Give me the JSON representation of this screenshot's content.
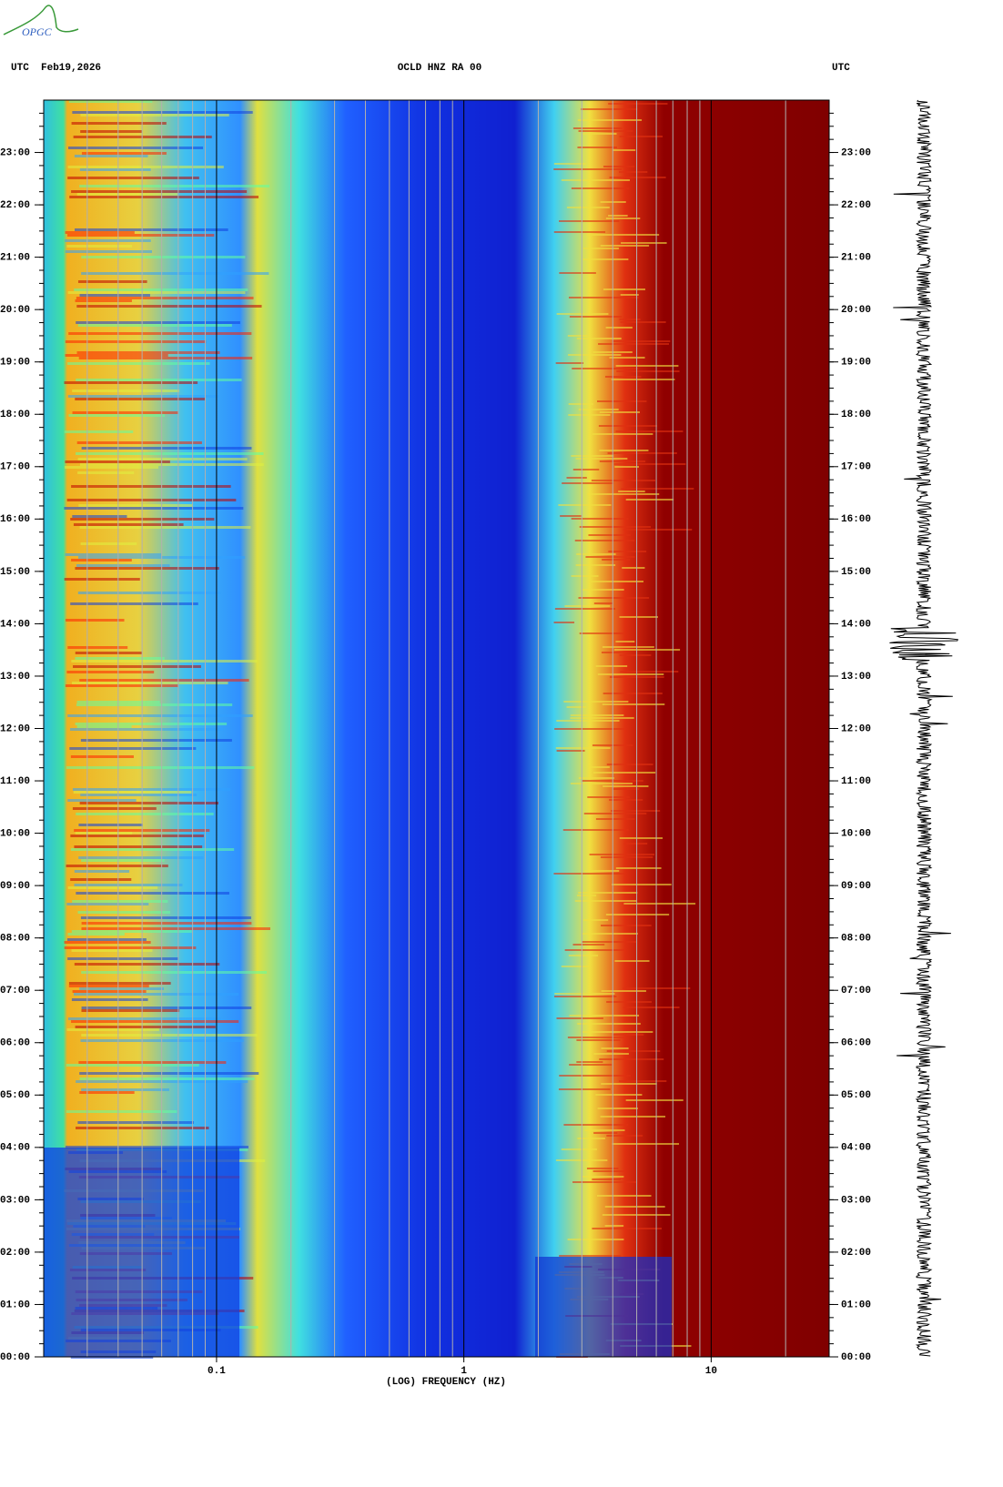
{
  "logo": "OPGC",
  "chart_data": {
    "type": "spectrogram",
    "title": "OCLD HNZ RA 00",
    "left_header": "UTC  Feb19,2026",
    "right_header": "UTC",
    "xlabel": "(LOG) FREQUENCY (HZ)",
    "xscale": "log",
    "xlim": [
      0.02,
      30
    ],
    "xticks": [
      0.1,
      1,
      10
    ],
    "xgrid": [
      0.03,
      0.04,
      0.05,
      0.06,
      0.07,
      0.08,
      0.09,
      0.2,
      0.3,
      0.4,
      0.5,
      0.6,
      0.7,
      0.8,
      0.9,
      2,
      3,
      4,
      5,
      6,
      7,
      8,
      9,
      20
    ],
    "ylim": [
      0,
      24
    ],
    "yticks": [
      {
        "value": 0,
        "label": "00:00"
      },
      {
        "value": 1,
        "label": "01:00"
      },
      {
        "value": 2,
        "label": "02:00"
      },
      {
        "value": 3,
        "label": "03:00"
      },
      {
        "value": 4,
        "label": "04:00"
      },
      {
        "value": 5,
        "label": "05:00"
      },
      {
        "value": 6,
        "label": "06:00"
      },
      {
        "value": 7,
        "label": "07:00"
      },
      {
        "value": 8,
        "label": "08:00"
      },
      {
        "value": 9,
        "label": "09:00"
      },
      {
        "value": 10,
        "label": "10:00"
      },
      {
        "value": 11,
        "label": "11:00"
      },
      {
        "value": 12,
        "label": "12:00"
      },
      {
        "value": 13,
        "label": "13:00"
      },
      {
        "value": 14,
        "label": "14:00"
      },
      {
        "value": 15,
        "label": "15:00"
      },
      {
        "value": 16,
        "label": "16:00"
      },
      {
        "value": 17,
        "label": "17:00"
      },
      {
        "value": 18,
        "label": "18:00"
      },
      {
        "value": 19,
        "label": "19:00"
      },
      {
        "value": 20,
        "label": "20:00"
      },
      {
        "value": 21,
        "label": "21:00"
      },
      {
        "value": 22,
        "label": "22:00"
      },
      {
        "value": 23,
        "label": "23:00"
      }
    ]
  }
}
